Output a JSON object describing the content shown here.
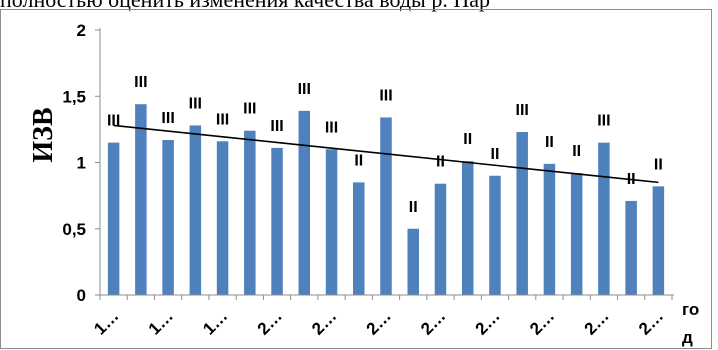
{
  "top_text": "полностью оценить изменения качества воды р. Пар",
  "chart_data": {
    "type": "bar",
    "ylabel": "ИЗВ",
    "xlabel": "год",
    "ylim": [
      0,
      2
    ],
    "yticks": [
      0,
      0.5,
      1,
      1.5,
      2
    ],
    "ytick_labels": [
      "0",
      "0,5",
      "1",
      "1,5",
      "2"
    ],
    "xtick_labels": [
      "1…",
      "1…",
      "1…",
      "2…",
      "2…",
      "2…",
      "2…",
      "2…",
      "2…",
      "2…",
      "2…"
    ],
    "series": [
      {
        "values": [
          1.15,
          1.44,
          1.17,
          1.28,
          1.16,
          1.24,
          1.11,
          1.39,
          1.1,
          0.85,
          1.34,
          0.5,
          0.84,
          1.01,
          0.9,
          1.23,
          0.99,
          0.92,
          1.15,
          0.71,
          0.82
        ],
        "data_labels": [
          "III",
          "III",
          "III",
          "III",
          "III",
          "III",
          "III",
          "III",
          "III",
          "II",
          "III",
          "II",
          "II",
          "II",
          "II",
          "III",
          "II",
          "II",
          "III",
          "II",
          "II"
        ]
      }
    ],
    "trendline": {
      "type": "linear",
      "start": 1.28,
      "end": 0.85
    },
    "grid": false,
    "legend": "none",
    "bar_color": "#4f81bd",
    "trend_color": "#000000"
  }
}
